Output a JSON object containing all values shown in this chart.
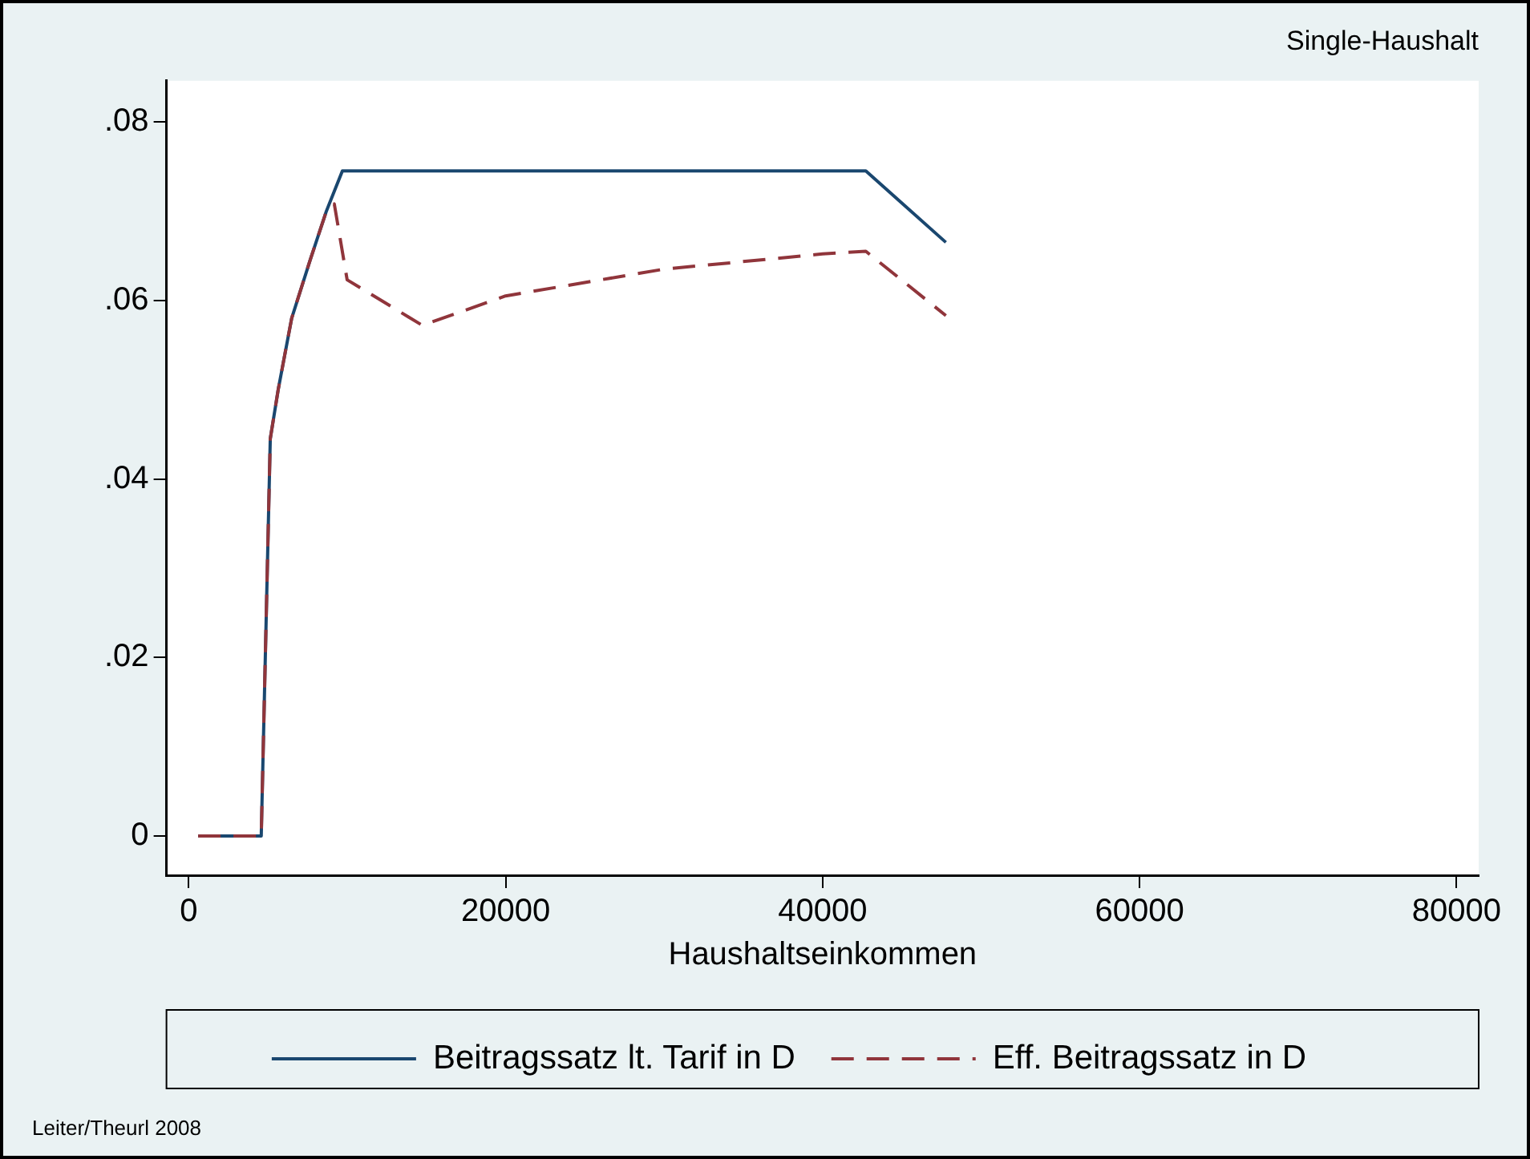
{
  "chart_data": {
    "type": "line",
    "title": "Single-Haushalt",
    "xlabel": "Haushaltseinkommen",
    "xlim": [
      -1400,
      81400
    ],
    "ylim": [
      -0.0044,
      0.0846
    ],
    "xticks": [
      0,
      20000,
      40000,
      60000,
      80000
    ],
    "yticks": [
      0,
      {
        "value": 0.02,
        "label": ".02"
      },
      {
        "value": 0.04,
        "label": ".04"
      },
      {
        "value": 0.06,
        "label": ".06"
      },
      {
        "value": 0.08,
        "label": ".08"
      }
    ],
    "grid": false,
    "legend": "bottom",
    "marker": "none",
    "series": [
      {
        "name": "Beitragssatz lt. Tarif in D",
        "color": "#1a476f",
        "line_style": "solid",
        "x": [
          600,
          4580,
          5150,
          5650,
          6500,
          7680,
          8690,
          9700,
          42730,
          47780
        ],
        "values": [
          0,
          0,
          0.0445,
          0.05,
          0.058,
          0.0646,
          0.07,
          0.0745,
          0.0745,
          0.0665
        ]
      },
      {
        "name": "Eff. Beitragssatz in D",
        "color": "#90353b",
        "line_style": "dashed",
        "x": [
          600,
          4580,
          5150,
          5650,
          6500,
          7680,
          8690,
          9190,
          10000,
          14750,
          20000,
          30000,
          40000,
          42730,
          47780
        ],
        "values": [
          0,
          0,
          0.0445,
          0.05,
          0.058,
          0.0646,
          0.07,
          0.0708,
          0.0623,
          0.0572,
          0.0605,
          0.0635,
          0.0652,
          0.0655,
          0.0583
        ]
      }
    ],
    "annotations": [
      "Leiter/Theurl 2008"
    ]
  }
}
